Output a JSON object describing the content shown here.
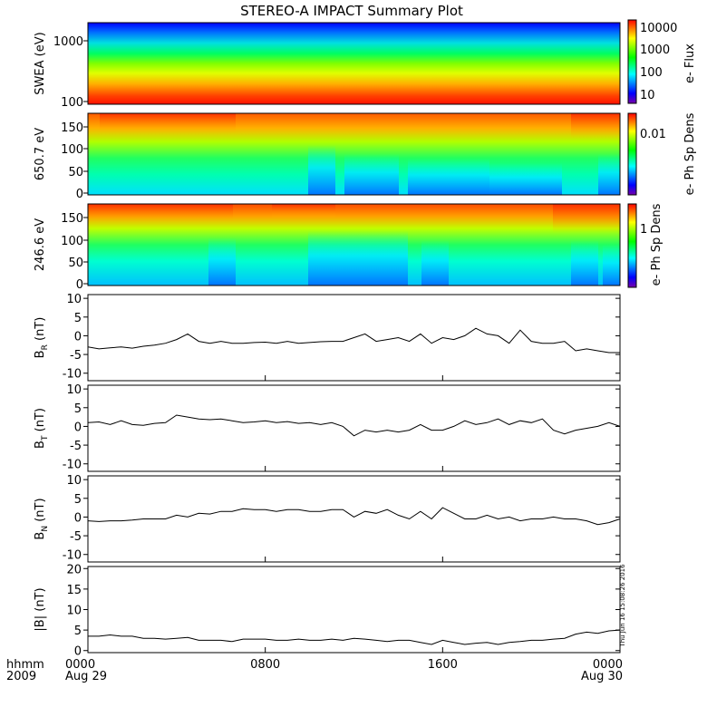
{
  "title": "STEREO-A IMPACT Summary Plot",
  "timestamp": "Thu Jun 16 15:08:26 2016",
  "x_axis": {
    "row1_label": "hhmm",
    "row2_label": "2009",
    "ticks": [
      {
        "t": 0,
        "label": "0000",
        "sub": "Aug 29"
      },
      {
        "t": 8,
        "label": "0800",
        "sub": ""
      },
      {
        "t": 16,
        "label": "1600",
        "sub": ""
      },
      {
        "t": 24,
        "label": "0000",
        "sub": "Aug 30"
      }
    ],
    "range_hours": [
      0,
      24
    ]
  },
  "colors": {
    "line": "#000000",
    "colormap": [
      "#7700aa",
      "#0000ff",
      "#00ffff",
      "#00ff00",
      "#ffff00",
      "#ff0000"
    ]
  },
  "chart_data": [
    {
      "type": "heatmap",
      "ylabel": "SWEA (eV)",
      "yscale": "log",
      "ylim": [
        100,
        2000
      ],
      "yticks": [
        "100",
        "1000"
      ],
      "colorbar": {
        "label": "e- Flux",
        "scale": "log",
        "ticks": [
          "10",
          "100",
          "1000",
          "10000"
        ]
      },
      "description_value": "flux ~10^4 near 100 eV falling to ~10 near 2000 eV, nearly constant in time"
    },
    {
      "type": "heatmap",
      "ylabel": "650.7 eV",
      "ylim": [
        0,
        180
      ],
      "yticks": [
        "0",
        "50",
        "100",
        "150"
      ],
      "colorbar": {
        "label": "e- Ph Sp Dens",
        "ticks": [
          "0.01"
        ]
      }
    },
    {
      "type": "heatmap",
      "ylabel": "246.6 eV",
      "ylim": [
        0,
        180
      ],
      "yticks": [
        "0",
        "50",
        "100",
        "150"
      ],
      "colorbar": {
        "label": "e- Ph Sp Dens",
        "ticks": [
          "1"
        ]
      }
    },
    {
      "type": "line",
      "ylabel_main": "B",
      "ylabel_sub": "R",
      "ylabel_unit": " (nT)",
      "ylim": [
        -12,
        11
      ],
      "yticks": [
        -10,
        -5,
        0,
        5,
        10
      ],
      "x": [
        0,
        0.5,
        1,
        1.5,
        2,
        2.5,
        3,
        3.5,
        4,
        4.5,
        5,
        5.5,
        6,
        6.5,
        7,
        7.5,
        8,
        8.5,
        9,
        9.5,
        10,
        10.5,
        11,
        11.5,
        12,
        12.5,
        13,
        13.5,
        14,
        14.5,
        15,
        15.5,
        16,
        16.5,
        17,
        17.5,
        18,
        18.5,
        19,
        19.5,
        20,
        20.5,
        21,
        21.5,
        22,
        22.5,
        23,
        23.5,
        24
      ],
      "y": [
        -3,
        -3.5,
        -3.2,
        -3,
        -3.3,
        -2.8,
        -2.5,
        -2,
        -1,
        0.5,
        -1.5,
        -2,
        -1.5,
        -2,
        -2,
        -1.8,
        -1.7,
        -2,
        -1.5,
        -2,
        -1.8,
        -1.6,
        -1.5,
        -1.5,
        -0.5,
        0.5,
        -1.5,
        -1,
        -0.5,
        -1.5,
        0.5,
        -2,
        -0.5,
        -1,
        0,
        2,
        0.5,
        0,
        -2,
        1.5,
        -1.5,
        -2,
        -2,
        -1.5,
        -4,
        -3.5,
        -4,
        -4.5,
        -4.5
      ]
    },
    {
      "type": "line",
      "ylabel_main": "B",
      "ylabel_sub": "T",
      "ylabel_unit": " (nT)",
      "ylim": [
        -12,
        11
      ],
      "yticks": [
        -10,
        -5,
        0,
        5,
        10
      ],
      "x": [
        0,
        0.5,
        1,
        1.5,
        2,
        2.5,
        3,
        3.5,
        4,
        4.5,
        5,
        5.5,
        6,
        6.5,
        7,
        7.5,
        8,
        8.5,
        9,
        9.5,
        10,
        10.5,
        11,
        11.5,
        12,
        12.5,
        13,
        13.5,
        14,
        14.5,
        15,
        15.5,
        16,
        16.5,
        17,
        17.5,
        18,
        18.5,
        19,
        19.5,
        20,
        20.5,
        21,
        21.5,
        22,
        22.5,
        23,
        23.5,
        24
      ],
      "y": [
        1,
        1.2,
        0.5,
        1.5,
        0.5,
        0.3,
        0.8,
        1,
        3,
        2.5,
        2,
        1.8,
        2,
        1.5,
        1,
        1.2,
        1.5,
        1,
        1.3,
        0.8,
        1,
        0.5,
        1,
        0,
        -2.5,
        -1,
        -1.5,
        -1,
        -1.5,
        -1,
        0.5,
        -1,
        -1,
        0,
        1.5,
        0.5,
        1,
        2,
        0.5,
        1.5,
        1,
        2,
        -1,
        -2,
        -1,
        -0.5,
        0,
        1,
        0
      ]
    },
    {
      "type": "line",
      "ylabel_main": "B",
      "ylabel_sub": "N",
      "ylabel_unit": " (nT)",
      "ylim": [
        -12,
        11
      ],
      "yticks": [
        -10,
        -5,
        0,
        5,
        10
      ],
      "x": [
        0,
        0.5,
        1,
        1.5,
        2,
        2.5,
        3,
        3.5,
        4,
        4.5,
        5,
        5.5,
        6,
        6.5,
        7,
        7.5,
        8,
        8.5,
        9,
        9.5,
        10,
        10.5,
        11,
        11.5,
        12,
        12.5,
        13,
        13.5,
        14,
        14.5,
        15,
        15.5,
        16,
        16.5,
        17,
        17.5,
        18,
        18.5,
        19,
        19.5,
        20,
        20.5,
        21,
        21.5,
        22,
        22.5,
        23,
        23.5,
        24
      ],
      "y": [
        -1,
        -1.2,
        -1,
        -1,
        -0.8,
        -0.5,
        -0.5,
        -0.5,
        0.5,
        0,
        1,
        0.8,
        1.5,
        1.5,
        2.2,
        2,
        2,
        1.5,
        2,
        2,
        1.5,
        1.5,
        2,
        2,
        0,
        1.5,
        1,
        2,
        0.5,
        -0.5,
        1.5,
        -0.5,
        2.5,
        1,
        -0.5,
        -0.5,
        0.5,
        -0.5,
        0,
        -1,
        -0.5,
        -0.5,
        0,
        -0.5,
        -0.5,
        -1,
        -2,
        -1.5,
        -0.5
      ]
    },
    {
      "type": "line",
      "ylabel_main": "|B|",
      "ylabel_sub": "",
      "ylabel_unit": " (nT)",
      "ylim": [
        -0.5,
        20.5
      ],
      "yticks": [
        0,
        5,
        10,
        15,
        20
      ],
      "x": [
        0,
        0.5,
        1,
        1.5,
        2,
        2.5,
        3,
        3.5,
        4,
        4.5,
        5,
        5.5,
        6,
        6.5,
        7,
        7.5,
        8,
        8.5,
        9,
        9.5,
        10,
        10.5,
        11,
        11.5,
        12,
        12.5,
        13,
        13.5,
        14,
        14.5,
        15,
        15.5,
        16,
        16.5,
        17,
        17.5,
        18,
        18.5,
        19,
        19.5,
        20,
        20.5,
        21,
        21.5,
        22,
        22.5,
        23,
        23.5,
        24
      ],
      "y": [
        3.5,
        3.5,
        3.8,
        3.5,
        3.5,
        3,
        3,
        2.8,
        3,
        3.2,
        2.5,
        2.5,
        2.5,
        2.2,
        2.8,
        2.8,
        2.8,
        2.5,
        2.5,
        2.8,
        2.5,
        2.5,
        2.8,
        2.5,
        3,
        2.8,
        2.5,
        2.2,
        2.5,
        2.5,
        2,
        1.5,
        2.5,
        2,
        1.5,
        1.8,
        2,
        1.5,
        2,
        2.2,
        2.5,
        2.5,
        2.8,
        3,
        4,
        4.5,
        4.2,
        4.8,
        5
      ]
    }
  ]
}
